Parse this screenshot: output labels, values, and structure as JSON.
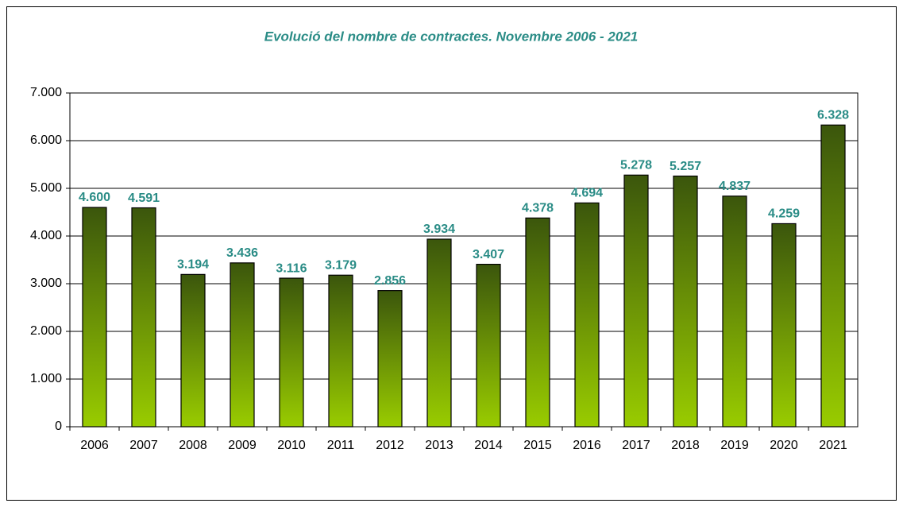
{
  "chart_data": {
    "type": "bar",
    "title": "Evolució del nombre de contractes. Novembre 2006 - 2021",
    "categories": [
      "2006",
      "2007",
      "2008",
      "2009",
      "2010",
      "2011",
      "2012",
      "2013",
      "2014",
      "2015",
      "2016",
      "2017",
      "2018",
      "2019",
      "2020",
      "2021"
    ],
    "values": [
      4600,
      4591,
      3194,
      3436,
      3116,
      3179,
      2856,
      3934,
      3407,
      4378,
      4694,
      5278,
      5257,
      4837,
      4259,
      6328
    ],
    "value_labels": [
      "4.600",
      "4.591",
      "3.194",
      "3.436",
      "3.116",
      "3.179",
      "2.856",
      "3.934",
      "3.407",
      "4.378",
      "4.694",
      "5.278",
      "5.257",
      "4.837",
      "4.259",
      "6.328"
    ],
    "color": [
      "#3b560c",
      "#99cc00"
    ],
    "ylim": [
      0,
      7000
    ],
    "yticks": [
      0,
      {
        "value": 1000,
        "label": "1.000"
      },
      {
        "value": 2000,
        "label": "2.000"
      },
      {
        "value": 3000,
        "label": "3.000"
      },
      {
        "value": 4000,
        "label": "4.000"
      },
      {
        "value": 5000,
        "label": "5.000"
      },
      {
        "value": 6000,
        "label": "6.000"
      },
      {
        "value": 7000,
        "label": "7.000"
      }
    ],
    "grid": true
  }
}
